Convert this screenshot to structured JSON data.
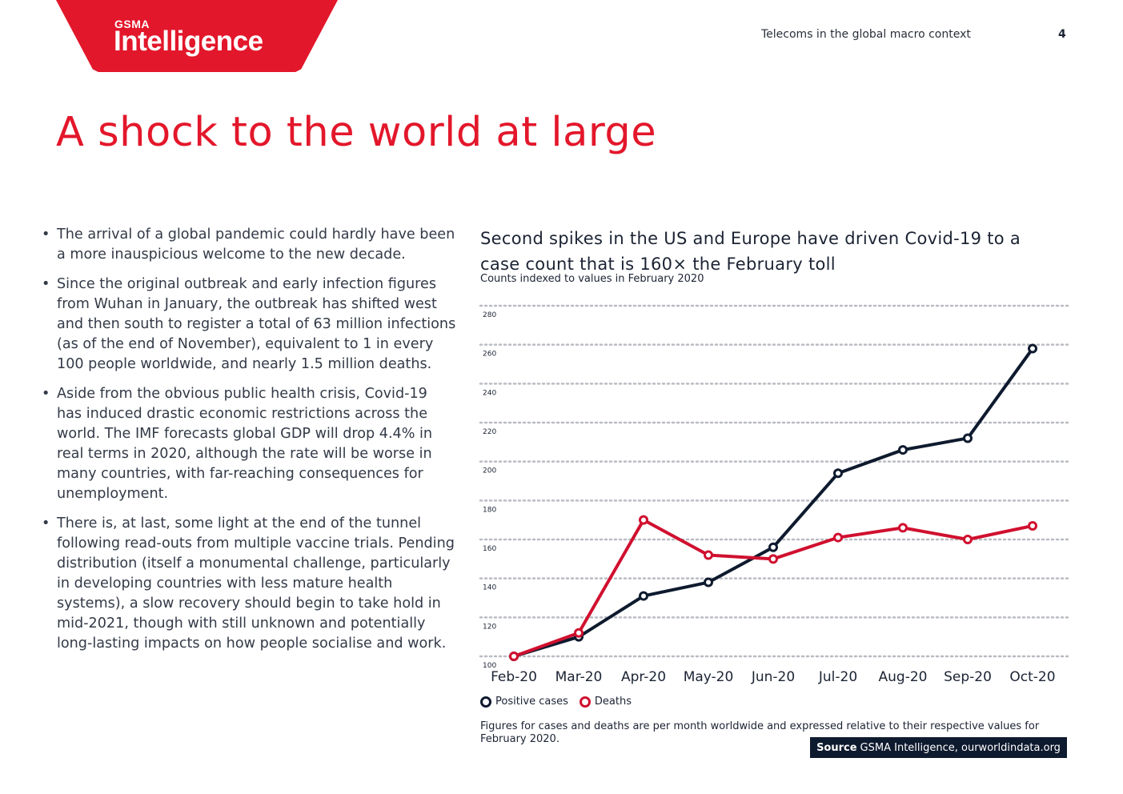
{
  "header": {
    "logo_small": "GSMA",
    "logo_big": "Intelligence",
    "section": "Telecoms in the global macro context",
    "page_number": "4"
  },
  "title": "A shock to the world at large",
  "bullets": [
    "The arrival of a global pandemic could hardly have been a more inauspicious welcome to the new decade.",
    "Since the original outbreak and early infection figures from Wuhan in January, the outbreak has shifted west and then south to register a total of 63 million infections (as of the end of November), equivalent to 1 in every 100 people worldwide, and nearly 1.5 million deaths.",
    "Aside from the obvious public health crisis, Covid-19 has induced drastic economic restrictions across the world. The IMF forecasts global GDP will drop 4.4% in real terms in 2020, although the rate will be worse in many countries, with far-reaching consequences for unemployment.",
    "There is, at last, some light at the end of the tunnel following read-outs from multiple vaccine trials. Pending distribution (itself a monumental challenge, particularly in developing countries with less mature health systems), a slow recovery should begin to take hold in mid-2021, though with still unknown and potentially long-lasting impacts on how people socialise and work."
  ],
  "chart_data": {
    "type": "line",
    "title": "Second spikes in the US and Europe have driven Covid-19 to a case count that is 160× the February toll",
    "subtitle": "Counts indexed to values in February 2020",
    "categories": [
      "Feb-20",
      "Mar-20",
      "Apr-20",
      "May-20",
      "Jun-20",
      "Jul-20",
      "Aug-20",
      "Sep-20",
      "Oct-20"
    ],
    "ylim": [
      100,
      280
    ],
    "yticks": [
      100,
      120,
      140,
      160,
      180,
      200,
      220,
      240,
      260,
      280
    ],
    "grid": true,
    "legend_position": "bottom-left",
    "series": [
      {
        "name": "Positive cases",
        "color": "#0e1a2e",
        "values": [
          100,
          110,
          131,
          138,
          156,
          194,
          206,
          212,
          258
        ]
      },
      {
        "name": "Deaths",
        "color": "#d0102f",
        "values": [
          100,
          112,
          170,
          152,
          150,
          161,
          166,
          160,
          167
        ]
      }
    ],
    "note": "Figures for cases and deaths are per month worldwide and expressed relative to their respective values for February 2020.",
    "source_label": "Source",
    "source_text": "GSMA Intelligence, ourworldindata.org"
  },
  "colors": {
    "brand_red": "#e3172b",
    "navy": "#0e1a2e"
  }
}
